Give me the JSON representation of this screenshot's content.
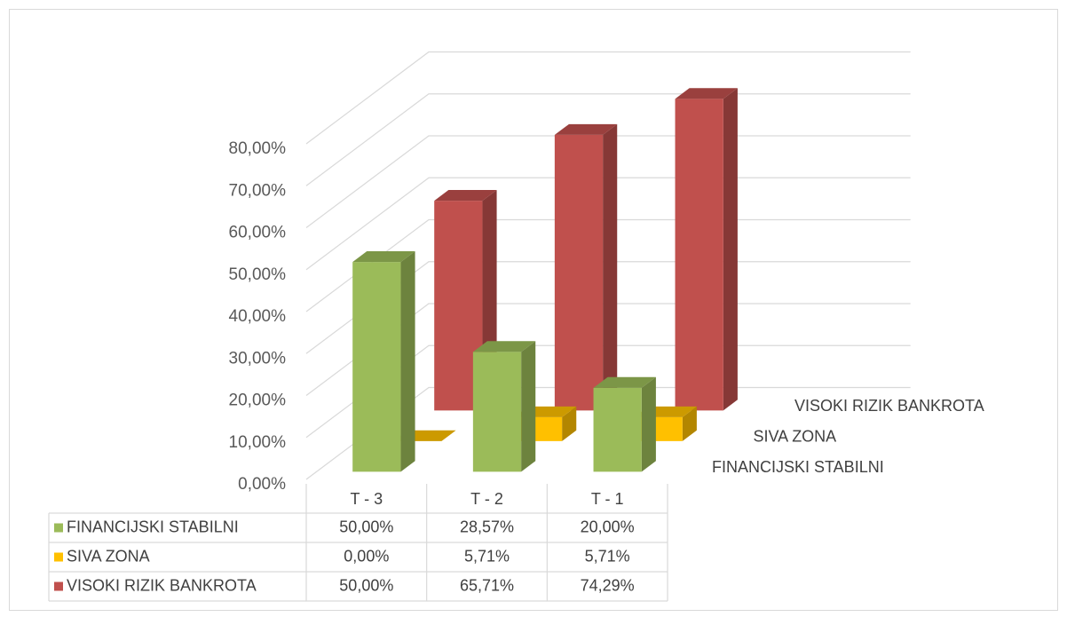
{
  "chart_data": {
    "type": "bar3d",
    "categories": [
      "T - 3",
      "T - 2",
      "T - 1"
    ],
    "series": [
      {
        "name": "FINANCIJSKI STABILNI",
        "color": "#9bbb59",
        "values": [
          50,
          28.57,
          20
        ],
        "value_labels": [
          "50,00%",
          "28,57%",
          "20,00%"
        ]
      },
      {
        "name": "SIVA ZONA",
        "color": "#ffc000",
        "values": [
          0,
          5.71,
          5.71
        ],
        "value_labels": [
          "0,00%",
          "5,71%",
          "5,71%"
        ]
      },
      {
        "name": "VISOKI RIZIK BANKROTA",
        "color": "#c0504d",
        "values": [
          50,
          65.71,
          74.29
        ],
        "value_labels": [
          "50,00%",
          "65,71%",
          "74,29%"
        ]
      }
    ],
    "ylim": [
      0,
      80
    ],
    "yticks": [
      {
        "value": 0,
        "label": "0,00%"
      },
      {
        "value": 10,
        "label": "10,00%"
      },
      {
        "value": 20,
        "label": "20,00%"
      },
      {
        "value": 30,
        "label": "30,00%"
      },
      {
        "value": 40,
        "label": "40,00%"
      },
      {
        "value": 50,
        "label": "50,00%"
      },
      {
        "value": 60,
        "label": "60,00%"
      },
      {
        "value": 70,
        "label": "70,00%"
      },
      {
        "value": 80,
        "label": "80,00%"
      }
    ],
    "grid": true
  }
}
